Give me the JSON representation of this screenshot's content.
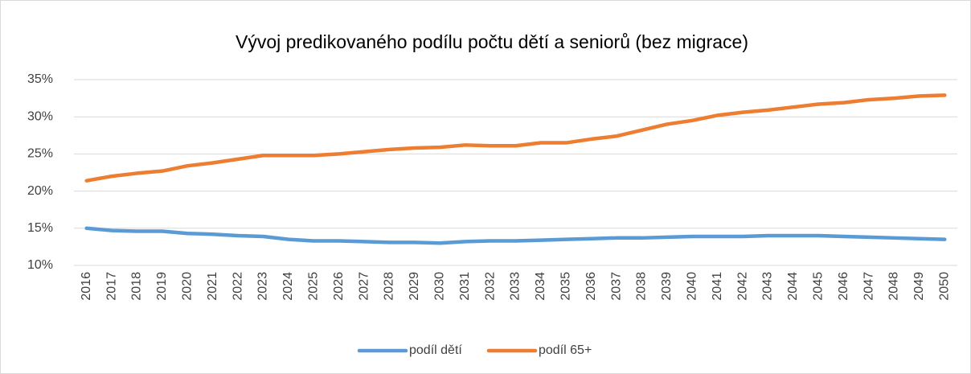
{
  "chart_data": {
    "type": "line",
    "title": "Vývoj predikovaného podílu počtu dětí a seniorů (bez migrace)",
    "categories": [
      "2016",
      "2017",
      "2018",
      "2019",
      "2020",
      "2021",
      "2022",
      "2023",
      "2024",
      "2025",
      "2026",
      "2027",
      "2028",
      "2029",
      "2030",
      "2031",
      "2032",
      "2033",
      "2034",
      "2035",
      "2036",
      "2037",
      "2038",
      "2039",
      "2040",
      "2041",
      "2042",
      "2043",
      "2044",
      "2045",
      "2046",
      "2047",
      "2048",
      "2049",
      "2050"
    ],
    "series": [
      {
        "name": "podíl dětí",
        "color": "#5b9bd5",
        "values": [
          15.0,
          14.7,
          14.6,
          14.6,
          14.3,
          14.2,
          14.0,
          13.9,
          13.5,
          13.3,
          13.3,
          13.2,
          13.1,
          13.1,
          13.0,
          13.2,
          13.3,
          13.3,
          13.4,
          13.5,
          13.6,
          13.7,
          13.7,
          13.8,
          13.9,
          13.9,
          13.9,
          14.0,
          14.0,
          14.0,
          13.9,
          13.8,
          13.7,
          13.6,
          13.5
        ]
      },
      {
        "name": "podíl 65+",
        "color": "#ed7d31",
        "values": [
          21.4,
          22.0,
          22.4,
          22.7,
          23.4,
          23.8,
          24.3,
          24.8,
          24.8,
          24.8,
          25.0,
          25.3,
          25.6,
          25.8,
          25.9,
          26.2,
          26.1,
          26.1,
          26.5,
          26.5,
          27.0,
          27.4,
          28.2,
          29.0,
          29.5,
          30.2,
          30.6,
          30.9,
          31.3,
          31.7,
          31.9,
          32.3,
          32.5,
          32.8,
          32.9
        ]
      }
    ],
    "ylim": [
      10,
      35
    ],
    "yticks": [
      {
        "value": 10,
        "label": "10%"
      },
      {
        "value": 15,
        "label": "15%"
      },
      {
        "value": 20,
        "label": "20%"
      },
      {
        "value": 25,
        "label": "25%"
      },
      {
        "value": 30,
        "label": "30%"
      },
      {
        "value": 35,
        "label": "35%"
      }
    ],
    "grid": true,
    "legend": "bottom"
  }
}
